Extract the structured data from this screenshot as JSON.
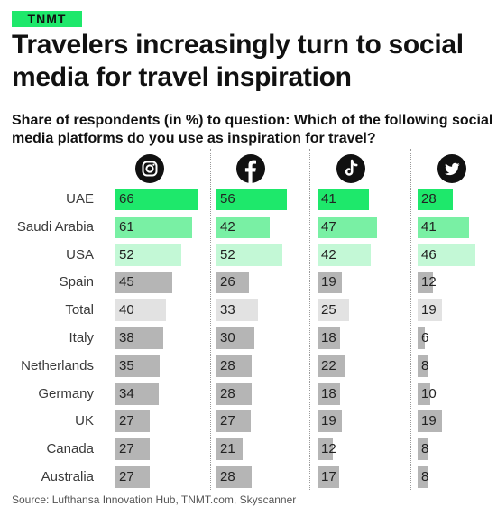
{
  "badge": "TNMT",
  "title": "Travelers increasingly turn to social media for travel inspiration",
  "subtitle": "Share of respondents (in %) to question: Which of the following social media platforms do you use as inspiration for travel?",
  "source": "Source: Lufthansa Innovation Hub, TNMT.com, Skyscanner",
  "colors": {
    "dark_green": "#1ee86b",
    "mid_green": "#79f0a4",
    "light_green": "#c3f8d6",
    "gray": "#b5b5b5",
    "light_gray": "#e2e2e2",
    "badge": "#1ee86b"
  },
  "chart_data": {
    "type": "bar",
    "orientation": "horizontal",
    "platforms": [
      {
        "name": "Instagram",
        "icon": "instagram-icon"
      },
      {
        "name": "Facebook",
        "icon": "facebook-icon"
      },
      {
        "name": "TikTok",
        "icon": "tiktok-icon"
      },
      {
        "name": "Twitter",
        "icon": "twitter-icon"
      }
    ],
    "categories": [
      "UAE",
      "Saudi Arabia",
      "USA",
      "Spain",
      "Total",
      "Italy",
      "Netherlands",
      "Germany",
      "UK",
      "Canada",
      "Australia"
    ],
    "category_color": [
      "dark_green",
      "mid_green",
      "light_green",
      "gray",
      "light_gray",
      "gray",
      "gray",
      "gray",
      "gray",
      "gray",
      "gray"
    ],
    "series": [
      {
        "values": [
          66,
          61,
          52,
          45,
          40,
          38,
          35,
          34,
          27,
          27,
          27
        ]
      },
      {
        "values": [
          56,
          42,
          52,
          26,
          33,
          30,
          28,
          28,
          27,
          21,
          28
        ]
      },
      {
        "values": [
          41,
          47,
          42,
          19,
          25,
          18,
          22,
          18,
          19,
          12,
          17
        ]
      },
      {
        "values": [
          28,
          41,
          46,
          12,
          19,
          6,
          8,
          10,
          19,
          8,
          8
        ]
      }
    ]
  }
}
